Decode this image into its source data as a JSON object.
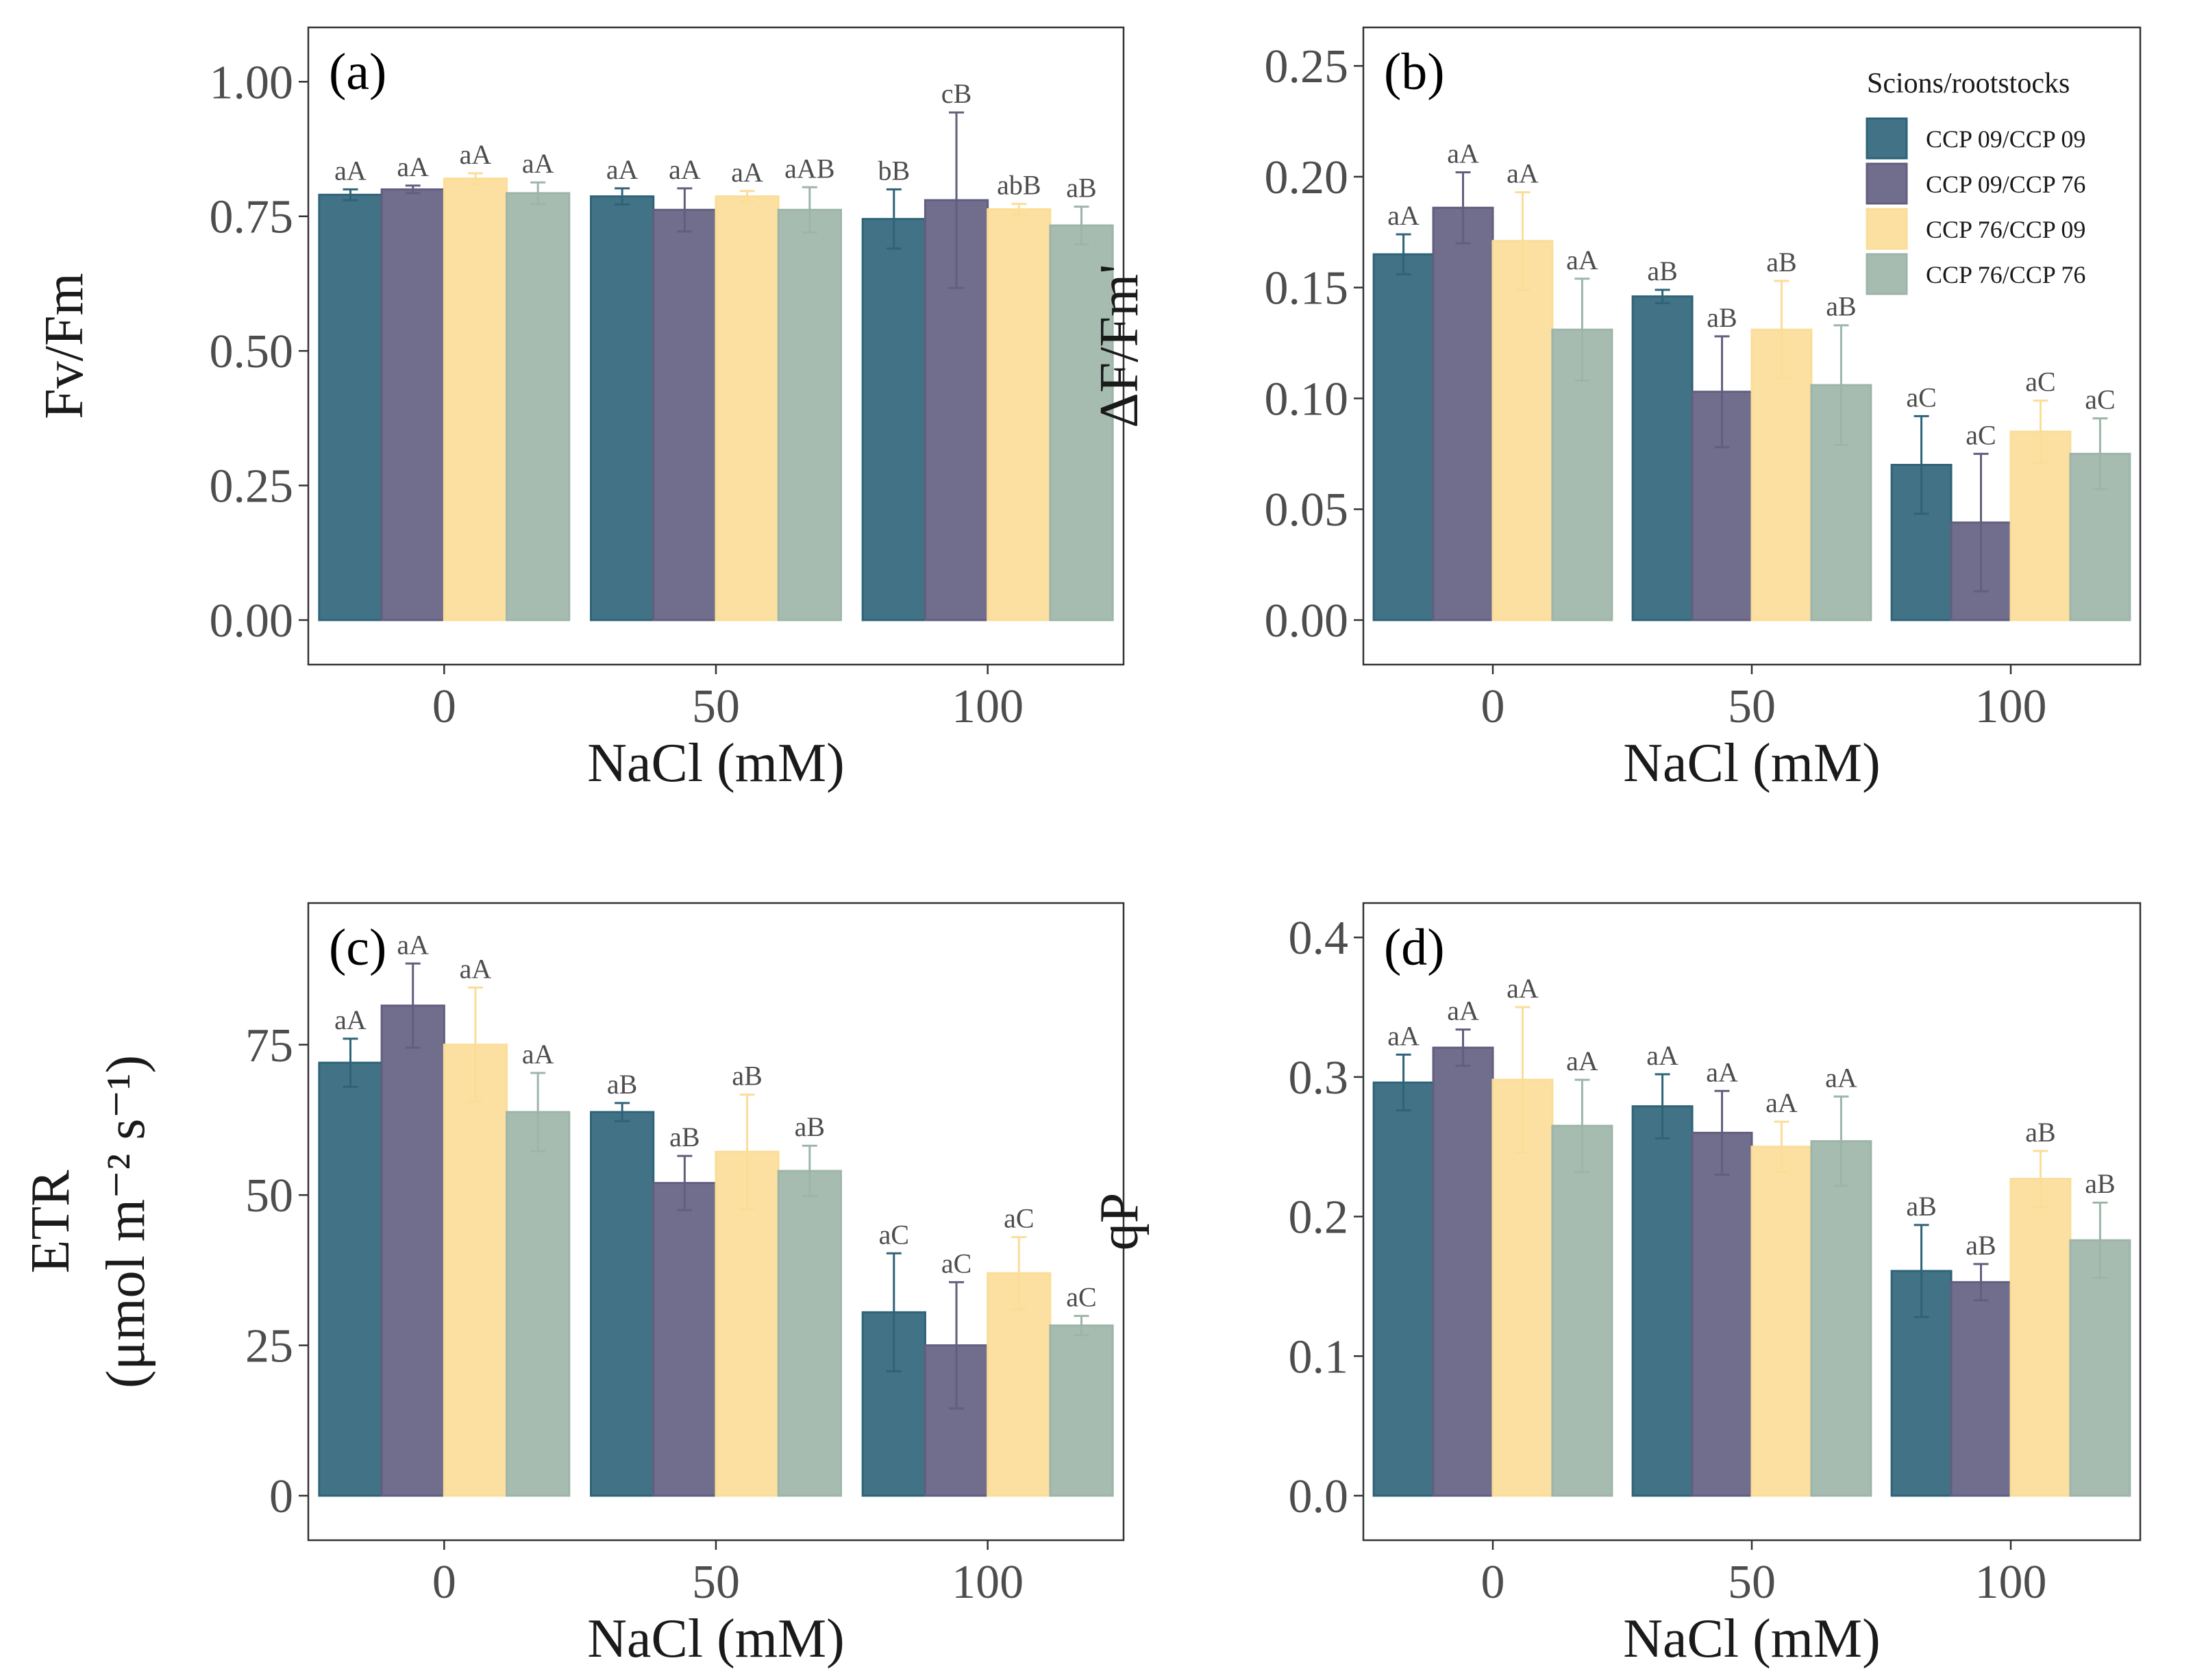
{
  "legend": {
    "title": "Scions/rootstocks",
    "items": [
      "CCP 09/CCP 09",
      "CCP 09/CCP 76",
      "CCP 76/CCP 09",
      "CCP 76/CCP 76"
    ]
  },
  "colors": {
    "series": [
      "#2E6378",
      "#615E7F",
      "#FBDD98",
      "#9DB5A9"
    ],
    "fill_opacity": 0.9,
    "text": "#4d4d4d",
    "axes": "#333333"
  },
  "chart_data": [
    {
      "panel": "(a)",
      "type": "bar",
      "categories": [
        "0",
        "50",
        "100"
      ],
      "xlabel": "NaCl (mM)",
      "ylabel": "Fv/Fm",
      "ylim": [
        0,
        1.05
      ],
      "yticks": [
        "0.00",
        "0.25",
        "0.50",
        "0.75",
        "1.00"
      ],
      "legend": false,
      "series": [
        {
          "name": "CCP 09/CCP 09",
          "values": [
            0.79,
            0.787,
            0.745
          ],
          "errors": [
            0.01,
            0.015,
            0.055
          ],
          "labels": [
            "aA",
            "aA",
            "bB"
          ]
        },
        {
          "name": "CCP 09/CCP 76",
          "values": [
            0.8,
            0.762,
            0.78
          ],
          "errors": [
            0.007,
            0.04,
            0.163
          ],
          "labels": [
            "aA",
            "aA",
            "cB"
          ]
        },
        {
          "name": "CCP 76/CCP 09",
          "values": [
            0.82,
            0.787,
            0.763
          ],
          "errors": [
            0.01,
            0.01,
            0.01
          ],
          "labels": [
            "aA",
            "aA",
            "abB"
          ]
        },
        {
          "name": "CCP 76/CCP 76",
          "values": [
            0.793,
            0.762,
            0.733
          ],
          "errors": [
            0.02,
            0.042,
            0.035
          ],
          "labels": [
            "aA",
            "aAB",
            "aB"
          ]
        }
      ]
    },
    {
      "panel": "(b)",
      "type": "bar",
      "categories": [
        "0",
        "50",
        "100"
      ],
      "xlabel": "NaCl (mM)",
      "ylabel": "ΔF/Fm'",
      "ylim": [
        0,
        0.255
      ],
      "yticks": [
        "0.00",
        "0.05",
        "0.10",
        "0.15",
        "0.20",
        "0.25"
      ],
      "legend": true,
      "series": [
        {
          "name": "CCP 09/CCP 09",
          "values": [
            0.165,
            0.146,
            0.07
          ],
          "errors": [
            0.009,
            0.003,
            0.022
          ],
          "labels": [
            "aA",
            "aB",
            "aC"
          ]
        },
        {
          "name": "CCP 09/CCP 76",
          "values": [
            0.186,
            0.103,
            0.044
          ],
          "errors": [
            0.016,
            0.025,
            0.031
          ],
          "labels": [
            "aA",
            "aB",
            "aC"
          ]
        },
        {
          "name": "CCP 76/CCP 09",
          "values": [
            0.171,
            0.131,
            0.085
          ],
          "errors": [
            0.022,
            0.022,
            0.014
          ],
          "labels": [
            "aA",
            "aB",
            "aC"
          ]
        },
        {
          "name": "CCP 76/CCP 76",
          "values": [
            0.131,
            0.106,
            0.075
          ],
          "errors": [
            0.023,
            0.027,
            0.016
          ],
          "labels": [
            "aA",
            "aB",
            "aC"
          ]
        }
      ]
    },
    {
      "panel": "(c)",
      "type": "bar",
      "categories": [
        "0",
        "50",
        "100"
      ],
      "xlabel": "NaCl (mM)",
      "ylabel": "ETR",
      "ylabel_unit": "(μmol m⁻² s⁻¹)",
      "ylim": [
        0,
        94
      ],
      "yticks": [
        "0",
        "25",
        "50",
        "75"
      ],
      "legend": false,
      "series": [
        {
          "name": "CCP 09/CCP 09",
          "values": [
            72,
            63.8,
            30.5
          ],
          "errors": [
            4,
            1.5,
            9.8
          ],
          "labels": [
            "aA",
            "aB",
            "aC"
          ]
        },
        {
          "name": "CCP 09/CCP 76",
          "values": [
            81.5,
            52,
            25
          ],
          "errors": [
            7,
            4.5,
            10.5
          ],
          "labels": [
            "aA",
            "aB",
            "aC"
          ]
        },
        {
          "name": "CCP 76/CCP 09",
          "values": [
            75,
            57.2,
            37
          ],
          "errors": [
            9.5,
            9.5,
            6
          ],
          "labels": [
            "aA",
            "aB",
            "aC"
          ]
        },
        {
          "name": "CCP 76/CCP 76",
          "values": [
            63.8,
            54,
            28.3
          ],
          "errors": [
            6.5,
            4.2,
            1.6
          ],
          "labels": [
            "aA",
            "aB",
            "aC"
          ]
        }
      ]
    },
    {
      "panel": "(d)",
      "type": "bar",
      "categories": [
        "0",
        "50",
        "100"
      ],
      "xlabel": "NaCl (mM)",
      "ylabel": "qP",
      "ylim": [
        0,
        0.405
      ],
      "yticks": [
        "0.0",
        "0.1",
        "0.2",
        "0.3",
        "0.4"
      ],
      "legend": false,
      "series": [
        {
          "name": "CCP 09/CCP 09",
          "values": [
            0.296,
            0.279,
            0.161
          ],
          "errors": [
            0.02,
            0.023,
            0.033
          ],
          "labels": [
            "aA",
            "aA",
            "aB"
          ]
        },
        {
          "name": "CCP 09/CCP 76",
          "values": [
            0.321,
            0.26,
            0.153
          ],
          "errors": [
            0.013,
            0.03,
            0.013
          ],
          "labels": [
            "aA",
            "aA",
            "aB"
          ]
        },
        {
          "name": "CCP 76/CCP 09",
          "values": [
            0.298,
            0.25,
            0.227
          ],
          "errors": [
            0.052,
            0.018,
            0.02
          ],
          "labels": [
            "aA",
            "aA",
            "aB"
          ]
        },
        {
          "name": "CCP 76/CCP 76",
          "values": [
            0.265,
            0.254,
            0.183
          ],
          "errors": [
            0.033,
            0.032,
            0.027
          ],
          "labels": [
            "aA",
            "aA",
            "aB"
          ]
        }
      ]
    }
  ]
}
